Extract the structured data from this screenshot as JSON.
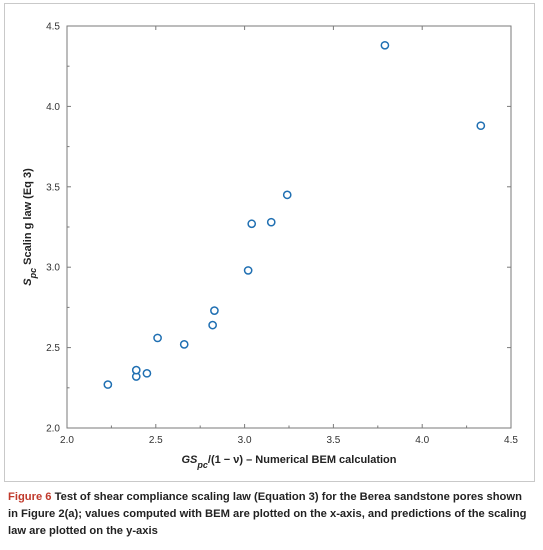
{
  "chart_data": {
    "type": "scatter",
    "xlabel_parts": [
      "GS",
      "pc",
      "/(1 − ν) – Numerical BEM calculation"
    ],
    "ylabel_parts": [
      "S",
      "pc",
      " Scalin g law (Eq 3)"
    ],
    "xlim": [
      2.0,
      4.5
    ],
    "ylim": [
      2.0,
      4.5
    ],
    "xticks": [
      2.0,
      2.5,
      3.0,
      3.5,
      4.0,
      4.5
    ],
    "yticks": [
      2.0,
      2.5,
      3.0,
      3.5,
      4.0,
      4.5
    ],
    "xtick_labels": [
      "2.0",
      "2.5",
      "3.0",
      "3.5",
      "4.0",
      "4.5"
    ],
    "ytick_labels": [
      "2.0",
      "2.5",
      "3.0",
      "3.5",
      "4.0",
      "4.5"
    ],
    "grid": false,
    "marker": "open-circle",
    "marker_color": "#1f6fb2",
    "points": [
      {
        "x": 2.23,
        "y": 2.27
      },
      {
        "x": 2.39,
        "y": 2.32
      },
      {
        "x": 2.39,
        "y": 2.36
      },
      {
        "x": 2.45,
        "y": 2.34
      },
      {
        "x": 2.51,
        "y": 2.56
      },
      {
        "x": 2.66,
        "y": 2.52
      },
      {
        "x": 2.82,
        "y": 2.64
      },
      {
        "x": 2.83,
        "y": 2.73
      },
      {
        "x": 3.02,
        "y": 2.98
      },
      {
        "x": 3.04,
        "y": 3.27
      },
      {
        "x": 3.15,
        "y": 3.28
      },
      {
        "x": 3.24,
        "y": 3.45
      },
      {
        "x": 3.79,
        "y": 4.38
      },
      {
        "x": 4.33,
        "y": 3.88
      }
    ]
  },
  "caption": {
    "label": "Figure 6",
    "text": " Test of shear compliance scaling law (Equation 3) for the Berea sandstone pores shown in Figure 2(a); values computed with BEM are plotted on the x-axis, and predictions of the scaling law are plotted on the y-axis"
  }
}
